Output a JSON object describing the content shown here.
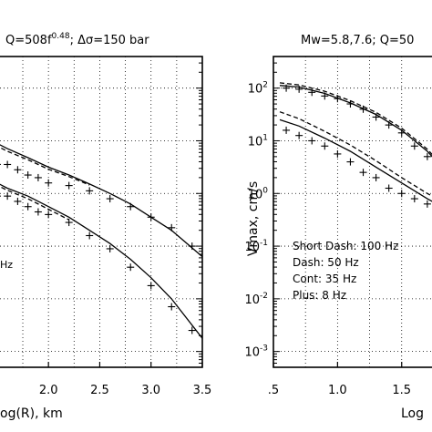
{
  "chart_data": [
    {
      "type": "line",
      "title_parts": {
        "a": "Q=508f",
        "sup": "0.48",
        "b": "; Δσ=150 bar"
      },
      "xlabel": "Log(R),  km",
      "ylabel": "",
      "xlim": [
        1.35,
        3.5
      ],
      "ylim": [
        -3.3,
        2.6
      ],
      "yscale": "log",
      "xticks": [
        2.0,
        2.5,
        3.0,
        3.5
      ],
      "xtick_labels": [
        "2.0",
        "2.5",
        "3.0",
        "3.5"
      ],
      "xlabel_partial": "og(R),  km",
      "grid": "dotted",
      "legend_fragment": "Hz",
      "series": [
        {
          "style": "solid",
          "x": [
            1.35,
            1.6,
            1.8,
            2.0,
            2.2,
            2.4,
            2.6,
            2.8,
            3.0,
            3.2,
            3.5
          ],
          "values": [
            1.1,
            0.85,
            0.68,
            0.5,
            0.35,
            0.18,
            0.0,
            -0.2,
            -0.45,
            -0.7,
            -1.2
          ]
        },
        {
          "style": "dash",
          "x": [
            1.35,
            1.6,
            1.8,
            2.0,
            2.2,
            2.4
          ],
          "values": [
            1.05,
            0.8,
            0.64,
            0.46,
            0.32,
            0.16
          ]
        },
        {
          "style": "solid",
          "x": [
            1.35,
            1.6,
            1.8,
            2.0,
            2.2,
            2.4,
            2.6,
            2.8,
            3.0,
            3.2,
            3.5
          ],
          "values": [
            0.35,
            0.1,
            -0.05,
            -0.25,
            -0.45,
            -0.7,
            -0.95,
            -1.25,
            -1.6,
            -2.0,
            -2.75
          ]
        },
        {
          "style": "dash",
          "x": [
            1.35,
            1.6,
            1.8,
            2.0,
            2.2
          ],
          "values": [
            0.3,
            0.06,
            -0.1,
            -0.3,
            -0.5
          ]
        }
      ],
      "plus_series": [
        {
          "x": [
            1.4,
            1.5,
            1.6,
            1.7,
            1.8,
            1.9,
            2.0,
            2.2,
            2.4,
            2.6,
            2.8,
            3.0,
            3.2,
            3.4
          ],
          "values": [
            0.65,
            0.55,
            0.55,
            0.45,
            0.35,
            0.3,
            0.2,
            0.15,
            0.05,
            -0.1,
            -0.25,
            -0.45,
            -0.65,
            -1.0
          ]
        },
        {
          "x": [
            1.4,
            1.5,
            1.6,
            1.7,
            1.8,
            1.9,
            2.0,
            2.2,
            2.4,
            2.6,
            2.8,
            3.0,
            3.2,
            3.4
          ],
          "values": [
            0.1,
            -0.05,
            -0.05,
            -0.15,
            -0.25,
            -0.35,
            -0.4,
            -0.55,
            -0.8,
            -1.05,
            -1.4,
            -1.75,
            -2.15,
            -2.6
          ]
        }
      ]
    },
    {
      "type": "line",
      "title": "Mw=5.8,7.6;  Q=50",
      "xlabel": "Log",
      "ylabel": "Vmax,  cm/s",
      "xlim": [
        0.5,
        1.85
      ],
      "ylim": [
        -3.3,
        2.6
      ],
      "yscale": "log",
      "xticks": [
        0.5,
        1.0,
        1.5
      ],
      "xtick_labels": [
        ".5",
        "1.0",
        "1.5"
      ],
      "yticks": [
        2,
        1,
        0,
        -1,
        -2,
        -3
      ],
      "ytick_labels": [
        "10^2",
        "10^1",
        "10^0",
        "10^-1",
        "10^-2",
        "10^-3"
      ],
      "grid": "dotted",
      "legend": [
        "Short Dash: 100 Hz",
        "Dash:  50 Hz",
        "Cont:  35 Hz",
        "Plus:  8 Hz"
      ],
      "series": [
        {
          "style": "solid",
          "x": [
            0.55,
            0.7,
            0.9,
            1.1,
            1.3,
            1.5,
            1.7,
            1.85
          ],
          "values": [
            2.05,
            2.02,
            1.9,
            1.72,
            1.5,
            1.2,
            0.8,
            0.4
          ]
        },
        {
          "style": "dash",
          "x": [
            0.55,
            0.7,
            0.9,
            1.1,
            1.3,
            1.5,
            1.7,
            1.85
          ],
          "values": [
            2.1,
            2.06,
            1.94,
            1.76,
            1.54,
            1.24,
            0.84,
            0.44
          ]
        },
        {
          "style": "solid",
          "x": [
            0.55,
            0.7,
            0.9,
            1.1,
            1.3,
            1.5,
            1.7,
            1.85
          ],
          "values": [
            1.4,
            1.28,
            1.05,
            0.8,
            0.5,
            0.2,
            -0.1,
            -0.3
          ]
        },
        {
          "style": "dash",
          "x": [
            0.55,
            0.7,
            0.9,
            1.1,
            1.3,
            1.5,
            1.7,
            1.85
          ],
          "values": [
            1.55,
            1.42,
            1.18,
            0.92,
            0.62,
            0.3,
            0.0,
            -0.2
          ]
        }
      ],
      "plus_series": [
        {
          "x": [
            0.6,
            0.7,
            0.8,
            0.9,
            1.0,
            1.1,
            1.2,
            1.3,
            1.4,
            1.5,
            1.6,
            1.7,
            1.8
          ],
          "values": [
            2.0,
            1.98,
            1.92,
            1.85,
            1.8,
            1.7,
            1.6,
            1.45,
            1.3,
            1.15,
            0.9,
            0.7,
            0.4
          ]
        },
        {
          "x": [
            0.6,
            0.7,
            0.8,
            0.9,
            1.0,
            1.1,
            1.2,
            1.3,
            1.4,
            1.5,
            1.6,
            1.7,
            1.8
          ],
          "values": [
            1.2,
            1.1,
            1.0,
            0.9,
            0.75,
            0.6,
            0.4,
            0.3,
            0.1,
            0.0,
            -0.1,
            -0.2,
            -0.3
          ]
        }
      ]
    }
  ]
}
